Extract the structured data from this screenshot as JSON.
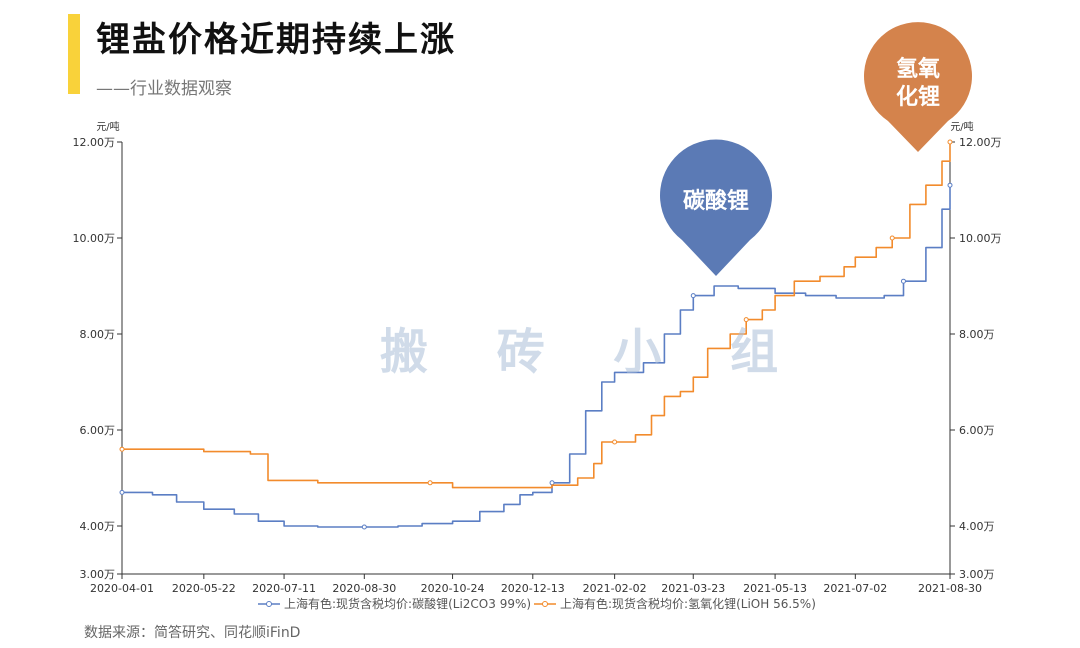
{
  "header": {
    "title": "锂盐价格近期持续上涨",
    "subtitle": "——行业数据观察",
    "accent_color": "#f9d23a"
  },
  "watermark": "搬 砖 小 组",
  "source": "数据来源：简答研究、同花顺iFinD",
  "callouts": {
    "lithium_carbonate": {
      "label": "碳酸锂",
      "color": "#5b7ab5"
    },
    "lithium_hydroxide": {
      "line1": "氢氧",
      "line2": "化锂",
      "color": "#d4834c"
    }
  },
  "chart_data": {
    "type": "line",
    "ylabel_left": "元/吨",
    "ylabel_right": "元/吨",
    "ylim": [
      30000,
      120000
    ],
    "y_ticks": [
      30000,
      40000,
      60000,
      80000,
      100000,
      120000
    ],
    "y_tick_labels": [
      "3.00万",
      "4.00万",
      "6.00万",
      "8.00万",
      "10.00万",
      "12.00万"
    ],
    "x_ticks": [
      "2020-04-01",
      "2020-05-22",
      "2020-07-11",
      "2020-08-30",
      "2020-10-24",
      "2020-12-13",
      "2021-02-02",
      "2021-03-23",
      "2021-05-13",
      "2021-07-02",
      "2021-08-30"
    ],
    "grid": false,
    "legend_position": "bottom",
    "series": [
      {
        "name": "上海有色:现货含税均价:碳酸锂(Li2CO3 99%)",
        "color": "#5b7ec4",
        "points": [
          [
            "2020-04-01",
            47000
          ],
          [
            "2020-04-20",
            46500
          ],
          [
            "2020-05-05",
            45000
          ],
          [
            "2020-05-22",
            43500
          ],
          [
            "2020-06-10",
            42500
          ],
          [
            "2020-06-25",
            41000
          ],
          [
            "2020-07-11",
            40000
          ],
          [
            "2020-08-01",
            39800
          ],
          [
            "2020-08-30",
            39800
          ],
          [
            "2020-09-20",
            40000
          ],
          [
            "2020-10-05",
            40500
          ],
          [
            "2020-10-24",
            41000
          ],
          [
            "2020-11-10",
            43000
          ],
          [
            "2020-11-25",
            44500
          ],
          [
            "2020-12-05",
            46500
          ],
          [
            "2020-12-13",
            47000
          ],
          [
            "2020-12-25",
            49000
          ],
          [
            "2021-01-05",
            55000
          ],
          [
            "2021-01-15",
            64000
          ],
          [
            "2021-01-25",
            70000
          ],
          [
            "2021-02-02",
            72000
          ],
          [
            "2021-02-20",
            74000
          ],
          [
            "2021-03-05",
            80000
          ],
          [
            "2021-03-15",
            85000
          ],
          [
            "2021-03-23",
            88000
          ],
          [
            "2021-04-05",
            90000
          ],
          [
            "2021-04-20",
            89500
          ],
          [
            "2021-05-13",
            88500
          ],
          [
            "2021-06-01",
            88000
          ],
          [
            "2021-06-20",
            87500
          ],
          [
            "2021-07-02",
            87500
          ],
          [
            "2021-07-20",
            88000
          ],
          [
            "2021-08-01",
            91000
          ],
          [
            "2021-08-15",
            98000
          ],
          [
            "2021-08-25",
            106000
          ],
          [
            "2021-08-30",
            111000
          ]
        ]
      },
      {
        "name": "上海有色:现货含税均价:氢氧化锂(LiOH 56.5%)",
        "color": "#f28b2c",
        "points": [
          [
            "2020-04-01",
            56000
          ],
          [
            "2020-05-15",
            56000
          ],
          [
            "2020-05-22",
            55500
          ],
          [
            "2020-06-20",
            55000
          ],
          [
            "2020-07-01",
            49500
          ],
          [
            "2020-07-11",
            49500
          ],
          [
            "2020-08-01",
            49000
          ],
          [
            "2020-08-30",
            49000
          ],
          [
            "2020-10-10",
            49000
          ],
          [
            "2020-10-24",
            48000
          ],
          [
            "2020-11-20",
            48000
          ],
          [
            "2020-12-13",
            48000
          ],
          [
            "2020-12-25",
            48500
          ],
          [
            "2021-01-10",
            50000
          ],
          [
            "2021-01-20",
            53000
          ],
          [
            "2021-01-25",
            57500
          ],
          [
            "2021-02-02",
            57500
          ],
          [
            "2021-02-15",
            59000
          ],
          [
            "2021-02-25",
            63000
          ],
          [
            "2021-03-05",
            67000
          ],
          [
            "2021-03-15",
            68000
          ],
          [
            "2021-03-23",
            71000
          ],
          [
            "2021-04-01",
            77000
          ],
          [
            "2021-04-15",
            80000
          ],
          [
            "2021-04-25",
            83000
          ],
          [
            "2021-05-05",
            85000
          ],
          [
            "2021-05-13",
            88000
          ],
          [
            "2021-05-25",
            91000
          ],
          [
            "2021-06-10",
            92000
          ],
          [
            "2021-06-25",
            94000
          ],
          [
            "2021-07-02",
            96000
          ],
          [
            "2021-07-15",
            98000
          ],
          [
            "2021-07-25",
            100000
          ],
          [
            "2021-08-05",
            107000
          ],
          [
            "2021-08-15",
            111000
          ],
          [
            "2021-08-25",
            116000
          ],
          [
            "2021-08-30",
            120000
          ]
        ]
      }
    ]
  }
}
